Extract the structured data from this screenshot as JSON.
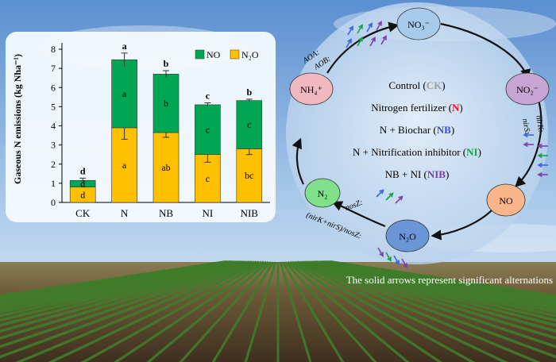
{
  "chart_data": {
    "type": "bar",
    "stacked": true,
    "ylabel": "Gaseous N emissions (kg Nha⁻¹)",
    "ylim": [
      0,
      8
    ],
    "yticks": [
      "0",
      "1",
      "2",
      "3",
      "4",
      "5",
      "6",
      "7",
      "8"
    ],
    "legend_position": "top-right",
    "categories": [
      "CK",
      "N",
      "NB",
      "NI",
      "NIB"
    ],
    "series": [
      {
        "name": "N₂O",
        "color": "#ffc000",
        "values": [
          0.8,
          3.9,
          3.65,
          2.5,
          2.8
        ],
        "errors": [
          0.0,
          0.6,
          0.25,
          0.4,
          0.3
        ],
        "letters": [
          "d",
          "a",
          "ab",
          "c",
          "bc"
        ]
      },
      {
        "name": "NO",
        "color": "#00a651",
        "values": [
          0.35,
          3.55,
          3.05,
          2.6,
          2.52
        ],
        "letters": [
          "d",
          "a",
          "b",
          "c",
          "c"
        ]
      }
    ],
    "total_errors": [
      0.12,
      0.35,
      0.18,
      0.1,
      0.07
    ],
    "total_letters": [
      "d",
      "a",
      "b",
      "c",
      "b"
    ]
  },
  "cycle": {
    "nodes": {
      "no3": "NO₃⁻",
      "no2": "NO₂⁻",
      "no": "NO",
      "n2o": "N₂O",
      "n2": "N₂",
      "nh4": "NH₄⁺"
    },
    "gene_labels": {
      "aoa": "AOA:",
      "aob": "AOB:",
      "nirs": "nirS:",
      "nirk": "nirK:",
      "nosz": "nosZ:",
      "ratio": "(nirK+nirS)/nosZ:"
    },
    "treatments": [
      {
        "prefix": "Control (",
        "code": "CK",
        "suffix": ")",
        "color": "#9e9e9e"
      },
      {
        "prefix": "Nitrogen fertilizer (",
        "code": "N",
        "suffix": ")",
        "color": "#e8101c"
      },
      {
        "prefix": "N + Biochar (",
        "code": "NB",
        "suffix": ")",
        "color": "#3b4fd8"
      },
      {
        "prefix": "N + Nitrification inhibitor (",
        "code": "NI",
        "suffix": ")",
        "color": "#17a34a"
      },
      {
        "prefix": "NB + NI (",
        "code": "NIB",
        "suffix": ")",
        "color": "#7e3fa8"
      }
    ],
    "note": "The solid arrows represent significant alternations"
  },
  "colors": {
    "blue": "#3b63e8",
    "green": "#17a34a",
    "purple": "#7e3fa8"
  }
}
